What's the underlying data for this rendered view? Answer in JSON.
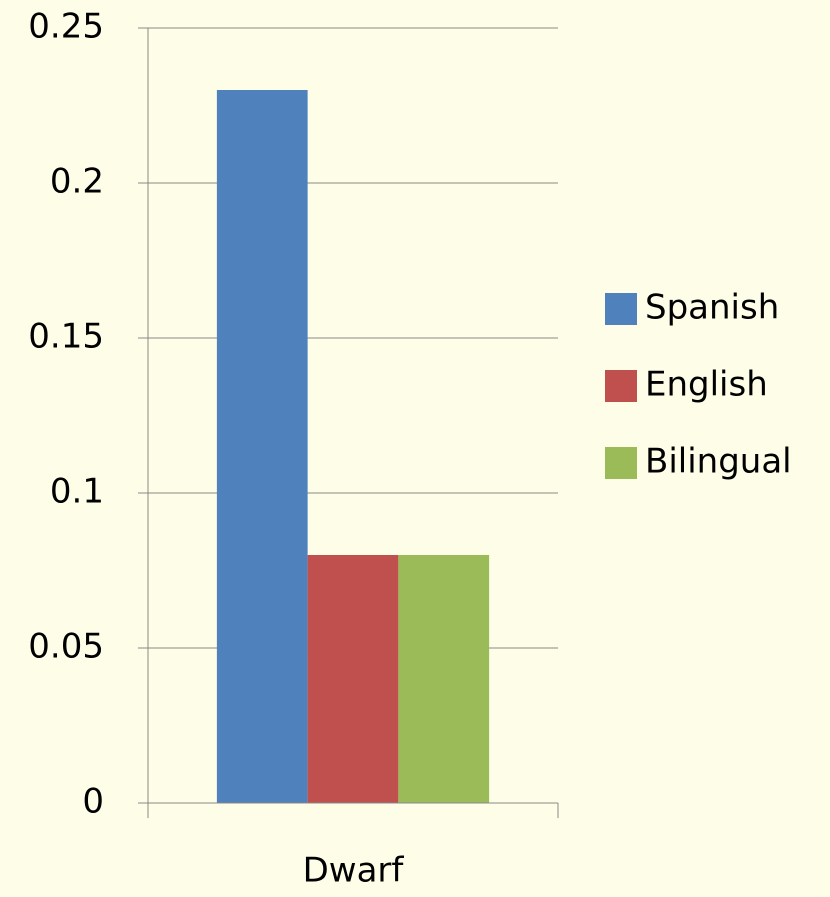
{
  "chart_data": {
    "type": "bar",
    "categories": [
      "Dwarf"
    ],
    "series": [
      {
        "name": "Spanish",
        "color": "#4f81bd",
        "values": [
          0.23
        ]
      },
      {
        "name": "English",
        "color": "#c0504d",
        "values": [
          0.08
        ]
      },
      {
        "name": "Bilingual",
        "color": "#9bbb59",
        "values": [
          0.08
        ]
      }
    ],
    "ylim": [
      0,
      0.25
    ],
    "yticks": [
      0,
      0.05,
      0.1,
      0.15,
      0.2,
      0.25
    ],
    "grid": true,
    "legend": "right"
  }
}
